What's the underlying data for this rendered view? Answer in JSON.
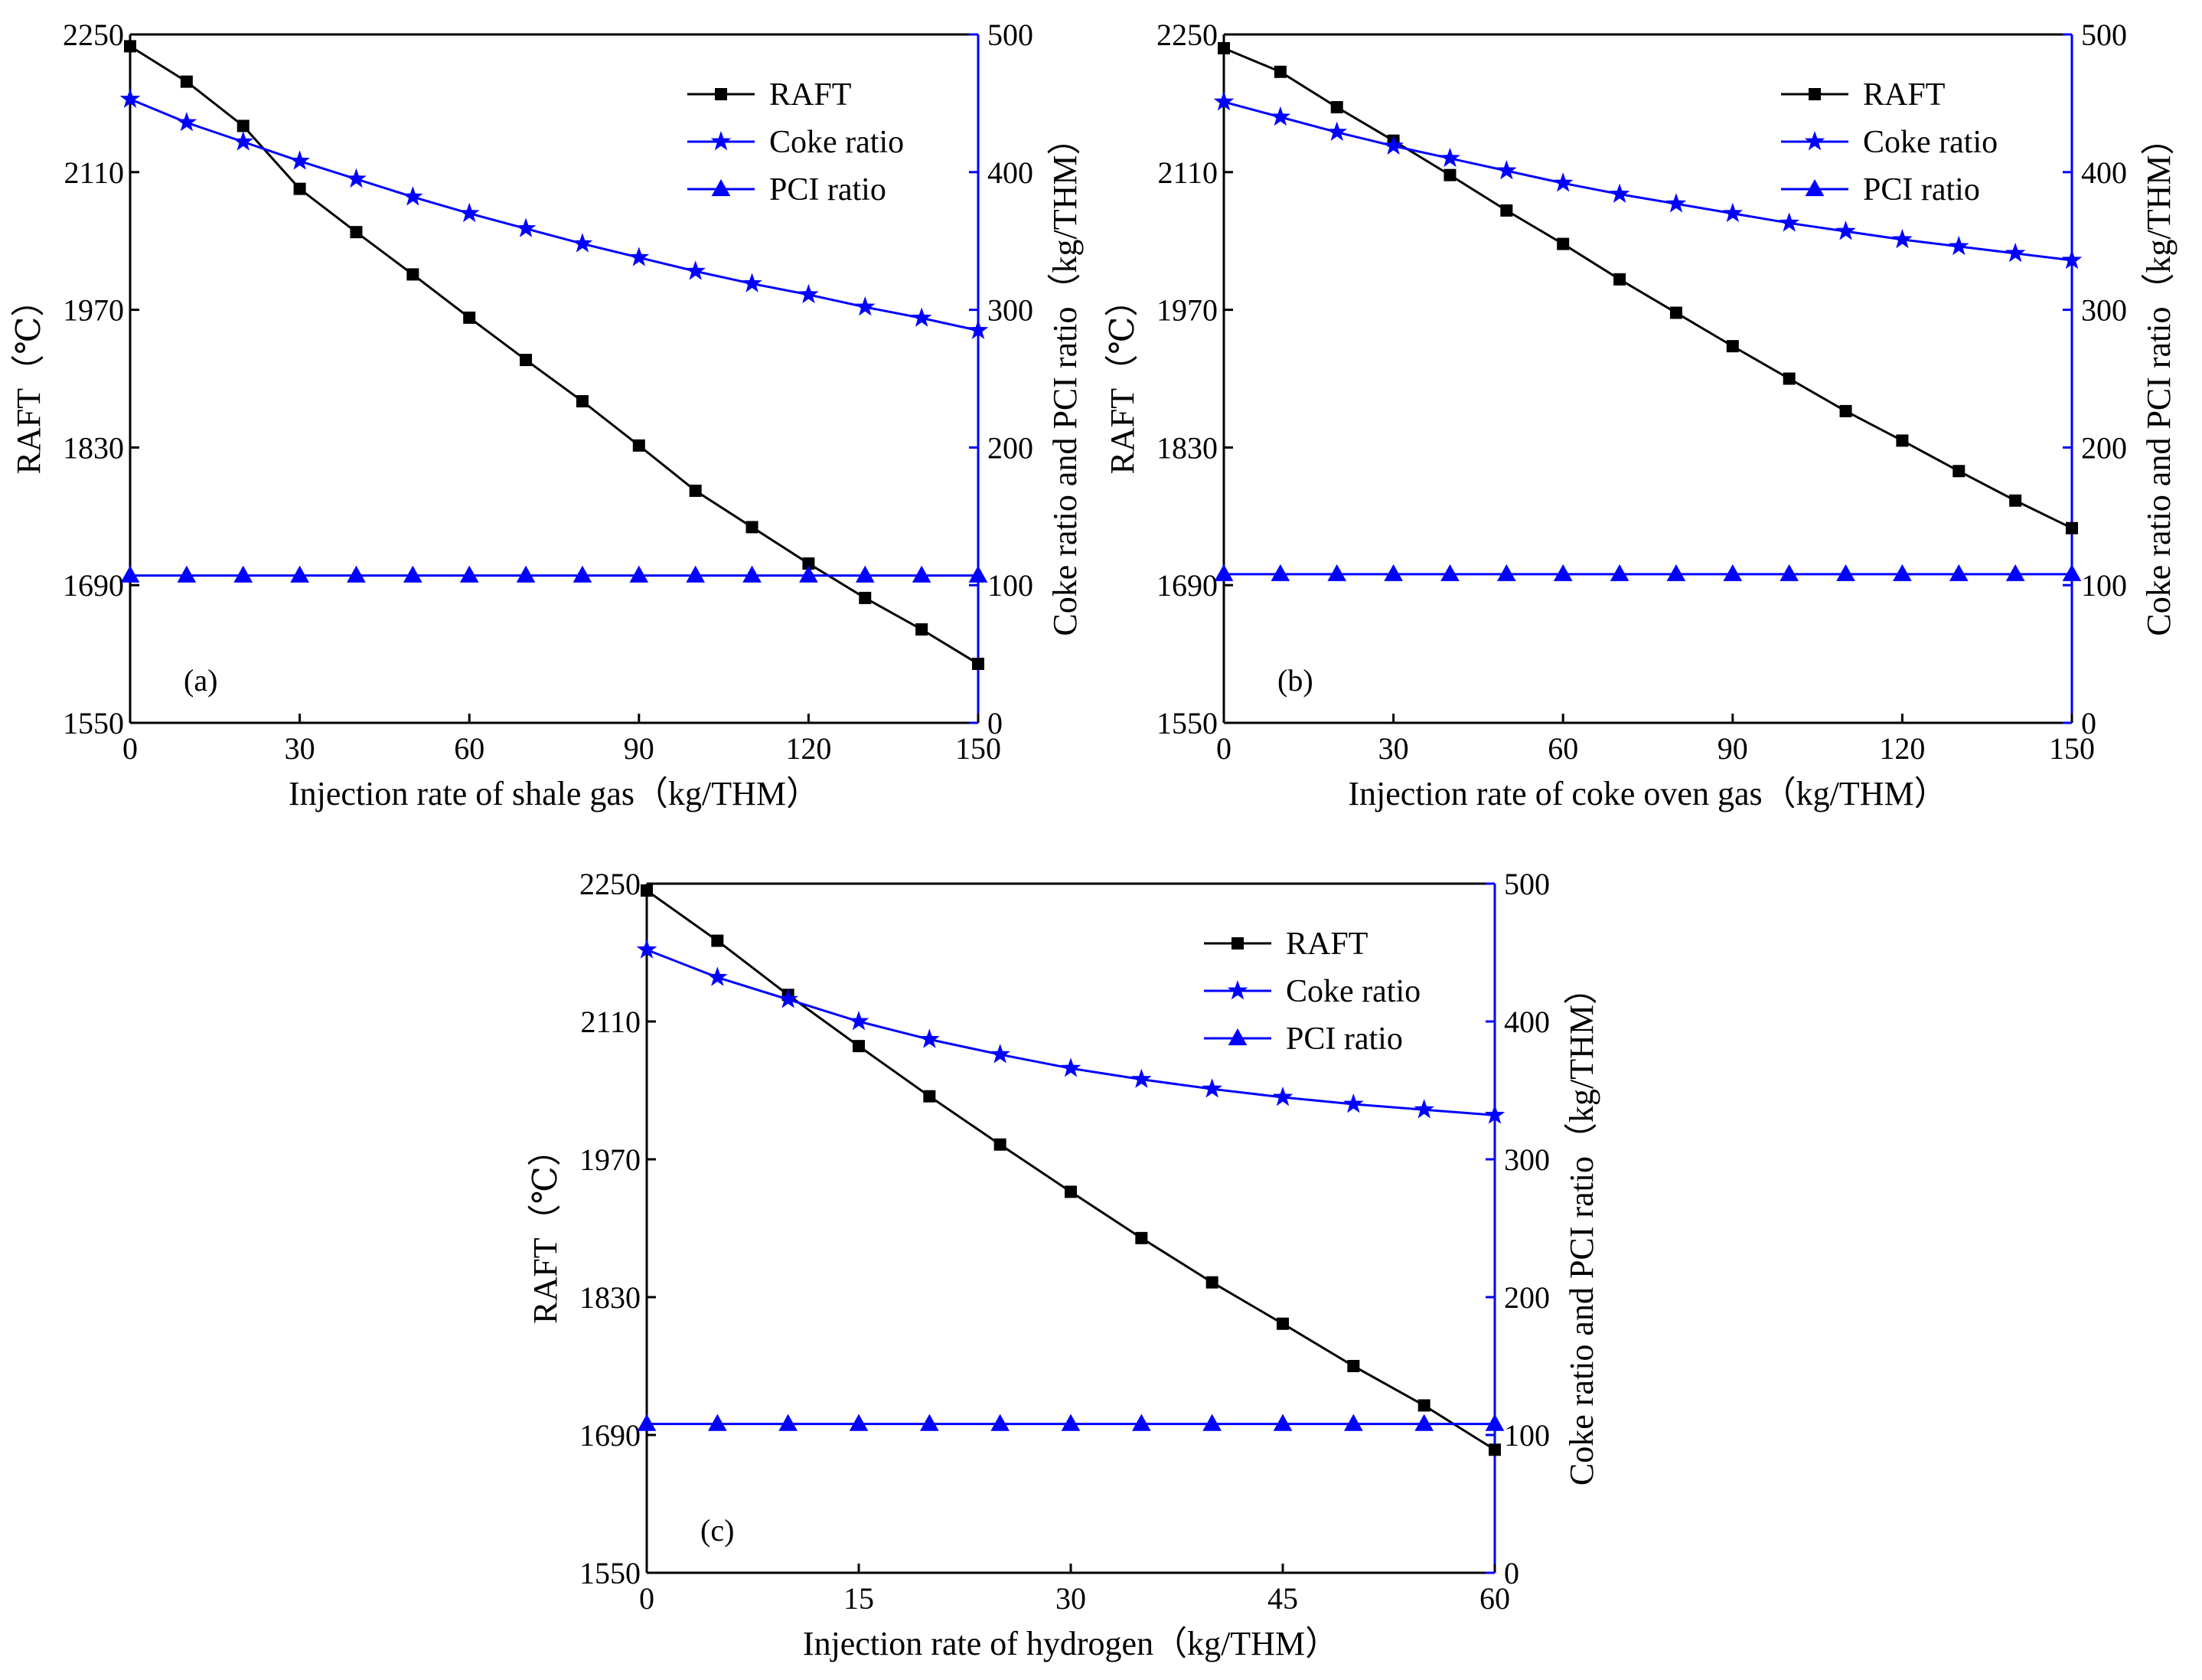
{
  "colors": {
    "raft": "#000000",
    "coke": "#0000ff",
    "pci": "#0000ff",
    "right_axis": "#0000ff",
    "left_axis": "#000000"
  },
  "chart_data": [
    {
      "type": "line",
      "panel_label": "(a)",
      "xlabel": "Injection rate of shale gas（kg/THM）",
      "ylabel_left": "RAFT（℃）",
      "ylabel_right": "Coke ratio and PCI ratio（kg/THM）",
      "xlim": [
        0,
        150
      ],
      "ylim_left": [
        1550,
        2250
      ],
      "ylim_right": [
        0,
        500
      ],
      "x_ticks": [
        "0",
        "30",
        "60",
        "90",
        "120",
        "150"
      ],
      "y_ticks_left": [
        "1550",
        "1690",
        "1830",
        "1970",
        "2110",
        "2250"
      ],
      "y_ticks_right": [
        "0",
        "100",
        "200",
        "300",
        "400",
        "500"
      ],
      "legend_position": "top-right",
      "x": [
        0,
        10,
        20,
        30,
        40,
        50,
        60,
        70,
        80,
        90,
        100,
        110,
        120,
        130,
        140,
        150
      ],
      "series": [
        {
          "name": "RAFT",
          "axis": "left",
          "marker": "square",
          "values": [
            2238,
            2202,
            2157,
            2093,
            2049,
            2006,
            1962,
            1919,
            1877,
            1832,
            1786,
            1749,
            1712,
            1677,
            1645,
            1610
          ]
        },
        {
          "name": "Coke ratio",
          "axis": "right",
          "marker": "star",
          "values": [
            453,
            436,
            422,
            408,
            395,
            382,
            370,
            359,
            348,
            338,
            328,
            319,
            311,
            302,
            294,
            285
          ]
        },
        {
          "name": "PCI ratio",
          "axis": "right",
          "marker": "triangle",
          "values": [
            107,
            107,
            107,
            107,
            107,
            107,
            107,
            107,
            107,
            107,
            107,
            107,
            107,
            107,
            107,
            107
          ]
        }
      ]
    },
    {
      "type": "line",
      "panel_label": "(b)",
      "xlabel": "Injection rate of coke oven gas（kg/THM）",
      "ylabel_left": "RAFT（℃）",
      "ylabel_right": "Coke ratio and PCI ratio（kg/THM）",
      "xlim": [
        0,
        150
      ],
      "ylim_left": [
        1550,
        2250
      ],
      "ylim_right": [
        0,
        500
      ],
      "x_ticks": [
        "0",
        "30",
        "60",
        "90",
        "120",
        "150"
      ],
      "y_ticks_left": [
        "1550",
        "1690",
        "1830",
        "1970",
        "2110",
        "2250"
      ],
      "y_ticks_right": [
        "0",
        "100",
        "200",
        "300",
        "400",
        "500"
      ],
      "legend_position": "top-right",
      "x": [
        0,
        10,
        20,
        30,
        40,
        50,
        60,
        70,
        80,
        90,
        100,
        110,
        120,
        130,
        140,
        150
      ],
      "series": [
        {
          "name": "RAFT",
          "axis": "left",
          "marker": "square",
          "values": [
            2236,
            2212,
            2176,
            2142,
            2107,
            2071,
            2037,
            2001,
            1967,
            1933,
            1900,
            1867,
            1837,
            1806,
            1776,
            1748
          ]
        },
        {
          "name": "Coke ratio",
          "axis": "right",
          "marker": "star",
          "values": [
            451,
            440,
            429,
            419,
            410,
            401,
            392,
            384,
            377,
            370,
            363,
            357,
            351,
            346,
            341,
            336
          ]
        },
        {
          "name": "PCI ratio",
          "axis": "right",
          "marker": "triangle",
          "values": [
            108,
            108,
            108,
            108,
            108,
            108,
            108,
            108,
            108,
            108,
            108,
            108,
            108,
            108,
            108,
            108
          ]
        }
      ]
    },
    {
      "type": "line",
      "panel_label": "(c)",
      "xlabel": "Injection rate of hydrogen（kg/THM）",
      "ylabel_left": "RAFT（℃）",
      "ylabel_right": "Coke ratio and PCI ratio（kg/THM）",
      "xlim": [
        0,
        60
      ],
      "ylim_left": [
        1550,
        2250
      ],
      "ylim_right": [
        0,
        500
      ],
      "x_ticks": [
        "0",
        "15",
        "30",
        "45",
        "60"
      ],
      "y_ticks_left": [
        "1550",
        "1690",
        "1830",
        "1970",
        "2110",
        "2250"
      ],
      "y_ticks_right": [
        "0",
        "100",
        "200",
        "300",
        "400",
        "500"
      ],
      "legend_position": "top-right",
      "x": [
        0,
        5,
        10,
        15,
        20,
        25,
        30,
        35,
        40,
        45,
        50,
        55,
        60
      ],
      "series": [
        {
          "name": "RAFT",
          "axis": "left",
          "marker": "square",
          "values": [
            2243,
            2192,
            2137,
            2085,
            2034,
            1985,
            1937,
            1890,
            1845,
            1803,
            1760,
            1720,
            1675
          ]
        },
        {
          "name": "Coke ratio",
          "axis": "right",
          "marker": "star",
          "values": [
            452,
            432,
            416,
            400,
            387,
            376,
            366,
            358,
            351,
            345,
            340,
            336,
            332
          ]
        },
        {
          "name": "PCI ratio",
          "axis": "right",
          "marker": "triangle",
          "values": [
            108,
            108,
            108,
            108,
            108,
            108,
            108,
            108,
            108,
            108,
            108,
            108,
            108
          ]
        }
      ]
    }
  ]
}
